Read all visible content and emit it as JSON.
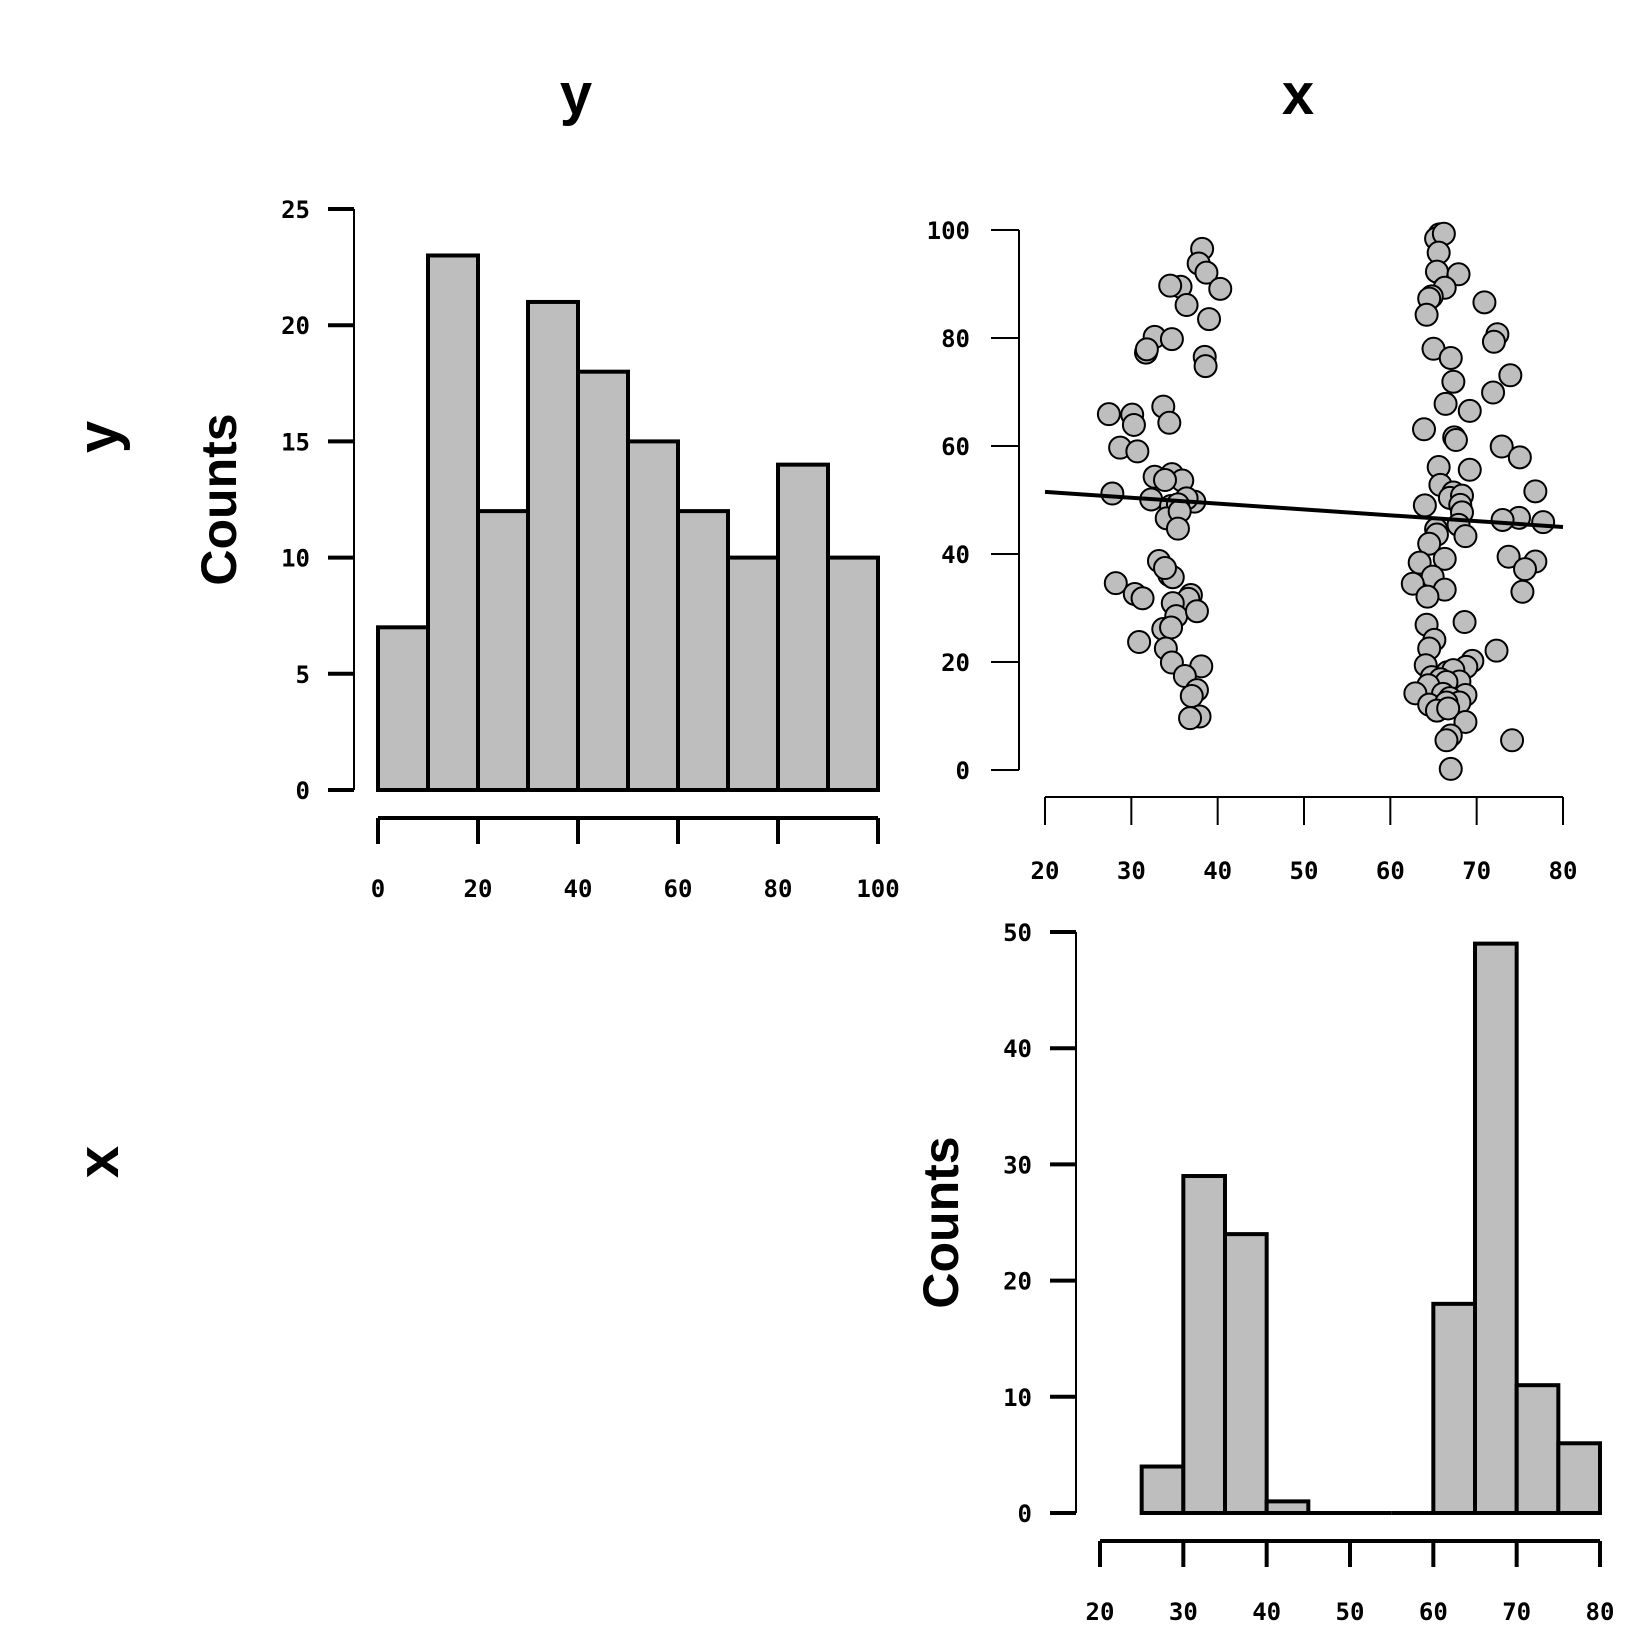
{
  "column_titles": [
    "y",
    "x"
  ],
  "row_titles": [
    "y",
    "x"
  ],
  "chart_data": [
    {
      "type": "bar",
      "panel": "histogram-y",
      "ylabel": "Counts",
      "bin_edges": [
        0,
        10,
        20,
        30,
        40,
        50,
        60,
        70,
        80,
        90,
        100
      ],
      "values": [
        7,
        23,
        12,
        21,
        18,
        15,
        12,
        10,
        14,
        10
      ],
      "xlim": [
        0,
        100
      ],
      "ylim": [
        0,
        25
      ],
      "xticks": [
        0,
        20,
        40,
        60,
        80,
        100
      ],
      "yticks": [
        0,
        5,
        10,
        15,
        20,
        25
      ]
    },
    {
      "type": "scatter",
      "panel": "scatter-x-vs-y",
      "xlim": [
        20,
        80
      ],
      "ylim": [
        0,
        100
      ],
      "xticks": [
        20,
        30,
        40,
        50,
        60,
        70,
        80
      ],
      "yticks": [
        0,
        20,
        40,
        60,
        80,
        100
      ],
      "regression_line": {
        "x": [
          20,
          80
        ],
        "y": [
          51.5,
          45
        ]
      },
      "points": [
        [
          38.2,
          96.5
        ],
        [
          37.8,
          93.8
        ],
        [
          38.7,
          92.1
        ],
        [
          40.3,
          89.1
        ],
        [
          35.7,
          89.5
        ],
        [
          34.5,
          89.7
        ],
        [
          36.4,
          86.1
        ],
        [
          39.0,
          83.5
        ],
        [
          32.7,
          80.2
        ],
        [
          34.7,
          79.8
        ],
        [
          31.7,
          77.3
        ],
        [
          31.8,
          77.9
        ],
        [
          38.5,
          76.5
        ],
        [
          38.6,
          74.8
        ],
        [
          27.4,
          65.9
        ],
        [
          30.1,
          65.8
        ],
        [
          30.3,
          63.9
        ],
        [
          33.7,
          67.3
        ],
        [
          34.4,
          64.3
        ],
        [
          28.7,
          59.7
        ],
        [
          30.7,
          59.0
        ],
        [
          32.7,
          54.3
        ],
        [
          34.7,
          54.8
        ],
        [
          35.9,
          53.6
        ],
        [
          33.9,
          53.7
        ],
        [
          27.8,
          51.2
        ],
        [
          32.3,
          50.1
        ],
        [
          37.3,
          49.7
        ],
        [
          36.4,
          50.3
        ],
        [
          34.6,
          48.9
        ],
        [
          35.4,
          49.2
        ],
        [
          34.1,
          46.6
        ],
        [
          35.6,
          47.9
        ],
        [
          35.4,
          44.7
        ],
        [
          33.2,
          38.7
        ],
        [
          34.4,
          36.1
        ],
        [
          34.8,
          35.7
        ],
        [
          33.9,
          37.4
        ],
        [
          28.2,
          34.6
        ],
        [
          30.4,
          32.6
        ],
        [
          31.3,
          31.8
        ],
        [
          36.9,
          32.4
        ],
        [
          36.6,
          31.7
        ],
        [
          34.8,
          30.9
        ],
        [
          35.2,
          28.5
        ],
        [
          37.6,
          29.4
        ],
        [
          33.7,
          26.1
        ],
        [
          34.6,
          26.4
        ],
        [
          30.9,
          23.7
        ],
        [
          34.0,
          22.5
        ],
        [
          34.7,
          19.9
        ],
        [
          38.1,
          19.2
        ],
        [
          36.2,
          17.4
        ],
        [
          37.6,
          14.8
        ],
        [
          37.0,
          13.7
        ],
        [
          37.9,
          9.9
        ],
        [
          36.8,
          9.6
        ],
        [
          65.7,
          99.2
        ],
        [
          65.3,
          98.4
        ],
        [
          66.2,
          99.3
        ],
        [
          65.6,
          95.8
        ],
        [
          65.4,
          92.3
        ],
        [
          67.9,
          91.8
        ],
        [
          66.3,
          89.3
        ],
        [
          64.8,
          87.7
        ],
        [
          64.5,
          87.3
        ],
        [
          70.9,
          86.6
        ],
        [
          64.2,
          84.3
        ],
        [
          72.4,
          80.7
        ],
        [
          72.0,
          79.3
        ],
        [
          65.0,
          78.0
        ],
        [
          67.0,
          76.3
        ],
        [
          73.9,
          73.1
        ],
        [
          67.3,
          71.9
        ],
        [
          71.9,
          69.9
        ],
        [
          66.4,
          67.8
        ],
        [
          69.2,
          66.5
        ],
        [
          63.9,
          63.1
        ],
        [
          67.4,
          61.6
        ],
        [
          67.6,
          61.1
        ],
        [
          72.9,
          59.9
        ],
        [
          75.0,
          57.9
        ],
        [
          65.6,
          56.1
        ],
        [
          69.2,
          55.6
        ],
        [
          65.8,
          52.8
        ],
        [
          76.8,
          51.6
        ],
        [
          67.3,
          51.4
        ],
        [
          66.9,
          50.4
        ],
        [
          68.3,
          50.8
        ],
        [
          68.1,
          49.1
        ],
        [
          64.0,
          49.0
        ],
        [
          68.3,
          47.7
        ],
        [
          74.9,
          46.7
        ],
        [
          73.0,
          46.3
        ],
        [
          77.7,
          45.9
        ],
        [
          67.9,
          45.4
        ],
        [
          65.3,
          44.6
        ],
        [
          65.4,
          43.6
        ],
        [
          68.7,
          43.3
        ],
        [
          64.5,
          41.9
        ],
        [
          73.7,
          39.5
        ],
        [
          76.8,
          38.6
        ],
        [
          66.3,
          39.1
        ],
        [
          63.4,
          38.4
        ],
        [
          75.6,
          37.2
        ],
        [
          64.9,
          35.8
        ],
        [
          62.6,
          34.5
        ],
        [
          66.3,
          33.4
        ],
        [
          75.3,
          33.0
        ],
        [
          64.3,
          32.1
        ],
        [
          68.6,
          27.4
        ],
        [
          64.2,
          26.9
        ],
        [
          65.1,
          24.1
        ],
        [
          64.5,
          22.5
        ],
        [
          72.3,
          22.1
        ],
        [
          69.5,
          20.2
        ],
        [
          68.8,
          19.1
        ],
        [
          64.1,
          19.4
        ],
        [
          66.6,
          18.1
        ],
        [
          67.3,
          18.5
        ],
        [
          64.8,
          17.2
        ],
        [
          65.8,
          16.8
        ],
        [
          68.0,
          16.4
        ],
        [
          66.5,
          16.3
        ],
        [
          64.4,
          15.7
        ],
        [
          66.1,
          14.1
        ],
        [
          62.9,
          14.2
        ],
        [
          68.7,
          13.9
        ],
        [
          66.9,
          13.3
        ],
        [
          68.0,
          12.5
        ],
        [
          64.5,
          12.1
        ],
        [
          66.5,
          12.5
        ],
        [
          65.4,
          11.0
        ],
        [
          66.7,
          11.4
        ],
        [
          68.7,
          8.9
        ],
        [
          67.0,
          6.4
        ],
        [
          66.5,
          5.5
        ],
        [
          74.1,
          5.5
        ],
        [
          67.0,
          0.2
        ]
      ]
    },
    {
      "type": "bar",
      "panel": "histogram-x",
      "ylabel": "Counts",
      "bin_edges": [
        25,
        30,
        35,
        40,
        45,
        50,
        55,
        60,
        65,
        70,
        75,
        80
      ],
      "values": [
        4,
        29,
        24,
        1,
        0,
        0,
        0,
        18,
        49,
        11,
        6
      ],
      "xlim": [
        20,
        80
      ],
      "ylim": [
        0,
        50
      ],
      "xticks": [
        20,
        30,
        40,
        50,
        60,
        70,
        80
      ],
      "yticks": [
        0,
        10,
        20,
        30,
        40,
        50
      ]
    }
  ]
}
